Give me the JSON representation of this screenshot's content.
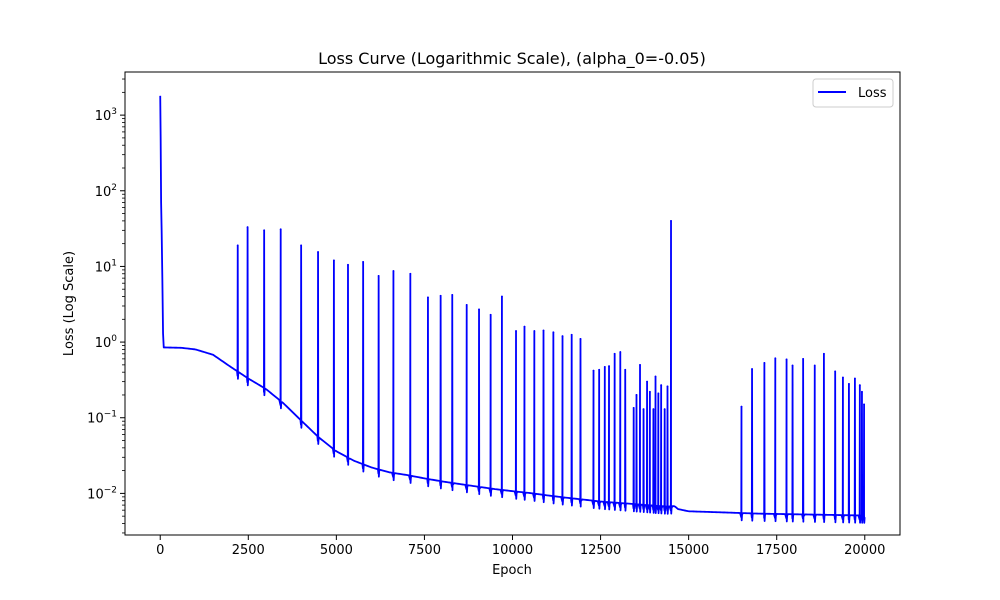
{
  "chart_data": {
    "type": "line",
    "title": "Loss Curve (Logarithmic Scale), (alpha_0=-0.05)",
    "xlabel": "Epoch",
    "ylabel": "Loss (Log Scale)",
    "xlim": [
      -1000,
      21000
    ],
    "ylim_log10": [
      -2.55,
      3.57
    ],
    "y_scale": "log",
    "grid": false,
    "legend_position": "top-right",
    "x_ticks": [
      0,
      2500,
      5000,
      7500,
      10000,
      12500,
      15000,
      17500,
      20000
    ],
    "x_tick_labels": [
      "0",
      "2500",
      "5000",
      "7500",
      "10000",
      "12500",
      "15000",
      "17500",
      "20000"
    ],
    "y_major_exponents": [
      -2,
      -1,
      0,
      1,
      2,
      3
    ],
    "y_tick_base": "10",
    "y_tick_exponents": [
      "−2",
      "−1",
      "0",
      "1",
      "2",
      "3"
    ],
    "series": [
      {
        "name": "Loss",
        "color": "#0000ff",
        "baseline": [
          [
            0,
            9
          ],
          [
            20,
            3
          ],
          [
            60,
            1.0
          ],
          [
            100,
            0.85
          ],
          [
            600,
            0.84
          ],
          [
            1000,
            0.8
          ],
          [
            1500,
            0.68
          ],
          [
            2000,
            0.47
          ],
          [
            2500,
            0.33
          ],
          [
            3000,
            0.24
          ],
          [
            3500,
            0.155
          ],
          [
            4000,
            0.092
          ],
          [
            4500,
            0.055
          ],
          [
            5000,
            0.036
          ],
          [
            5500,
            0.027
          ],
          [
            6000,
            0.022
          ],
          [
            6500,
            0.019
          ],
          [
            7000,
            0.0175
          ],
          [
            7500,
            0.0158
          ],
          [
            8000,
            0.0144
          ],
          [
            8500,
            0.0133
          ],
          [
            9000,
            0.0123
          ],
          [
            9500,
            0.0114
          ],
          [
            10000,
            0.0107
          ],
          [
            10500,
            0.0101
          ],
          [
            11000,
            0.0094
          ],
          [
            11500,
            0.0088
          ],
          [
            12000,
            0.0083
          ],
          [
            12500,
            0.0078
          ],
          [
            13000,
            0.0075
          ],
          [
            13500,
            0.0072
          ],
          [
            14000,
            0.0069
          ],
          [
            14400,
            0.0067
          ],
          [
            14600,
            0.0068
          ],
          [
            14700,
            0.0062
          ],
          [
            15000,
            0.0058
          ],
          [
            16000,
            0.0056
          ],
          [
            17000,
            0.0054
          ],
          [
            18000,
            0.0053
          ],
          [
            19000,
            0.0052
          ],
          [
            20000,
            0.0051
          ]
        ],
        "initial_spikes": [
          [
            0,
            1800
          ],
          [
            12,
            500
          ],
          [
            25,
            70
          ],
          [
            40,
            30
          ],
          [
            60,
            7
          ],
          [
            80,
            1.3
          ]
        ],
        "spikes": [
          [
            2200,
            19
          ],
          [
            2480,
            33
          ],
          [
            2950,
            30
          ],
          [
            3420,
            31
          ],
          [
            4000,
            19
          ],
          [
            4480,
            15.5
          ],
          [
            4930,
            12
          ],
          [
            5330,
            10.5
          ],
          [
            5760,
            11.5
          ],
          [
            6200,
            7.5
          ],
          [
            6620,
            8.7
          ],
          [
            7100,
            8.0
          ],
          [
            7600,
            3.9
          ],
          [
            7960,
            4.1
          ],
          [
            8290,
            4.2
          ],
          [
            8700,
            3.1
          ],
          [
            9050,
            2.7
          ],
          [
            9380,
            2.3
          ],
          [
            9700,
            4.0
          ],
          [
            10100,
            1.4
          ],
          [
            10340,
            1.6
          ],
          [
            10620,
            1.4
          ],
          [
            10880,
            1.42
          ],
          [
            11160,
            1.35
          ],
          [
            11420,
            1.2
          ],
          [
            11680,
            1.25
          ],
          [
            11930,
            1.1
          ],
          [
            12300,
            0.42
          ],
          [
            12460,
            0.43
          ],
          [
            12620,
            0.47
          ],
          [
            12740,
            0.48
          ],
          [
            12900,
            0.7
          ],
          [
            13060,
            0.74
          ],
          [
            13200,
            0.43
          ],
          [
            13440,
            0.135
          ],
          [
            13520,
            0.2
          ],
          [
            13620,
            0.5
          ],
          [
            13720,
            0.13
          ],
          [
            13820,
            0.3
          ],
          [
            13900,
            0.22
          ],
          [
            14000,
            0.13
          ],
          [
            14060,
            0.35
          ],
          [
            14140,
            0.21
          ],
          [
            14220,
            0.27
          ],
          [
            14320,
            0.13
          ],
          [
            14400,
            0.26
          ],
          [
            14500,
            40
          ],
          [
            16500,
            0.14
          ],
          [
            16800,
            0.44
          ],
          [
            17150,
            0.53
          ],
          [
            17460,
            0.61
          ],
          [
            17780,
            0.59
          ],
          [
            17950,
            0.49
          ],
          [
            18250,
            0.6
          ],
          [
            18580,
            0.49
          ],
          [
            18840,
            0.7
          ],
          [
            19160,
            0.41
          ],
          [
            19380,
            0.34
          ],
          [
            19550,
            0.28
          ],
          [
            19720,
            0.33
          ],
          [
            19860,
            0.27
          ],
          [
            19920,
            0.22
          ],
          [
            19980,
            0.15
          ]
        ]
      }
    ]
  }
}
